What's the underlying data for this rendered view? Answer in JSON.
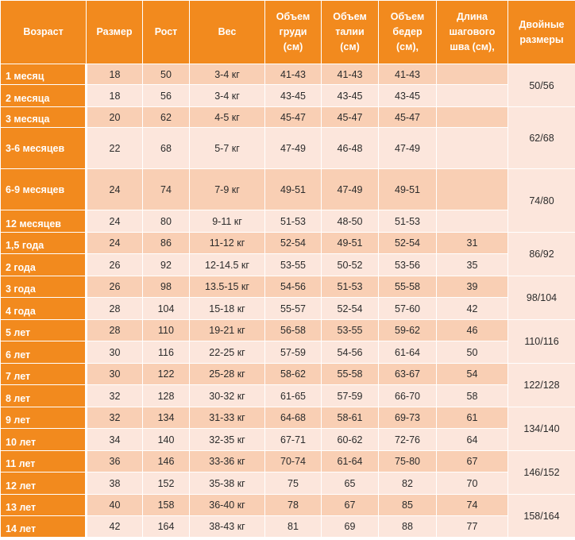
{
  "table": {
    "headers": [
      [
        "Возраст"
      ],
      [
        "Размер"
      ],
      [
        "Рост"
      ],
      [
        "Вес"
      ],
      [
        "Объем",
        "груди",
        "(см)"
      ],
      [
        "Объем",
        "талии",
        "(см)"
      ],
      [
        "Объем",
        "бедер",
        "(см),"
      ],
      [
        "Длина",
        "шагового",
        "шва (см),"
      ],
      [
        "Двойные",
        "размеры"
      ]
    ],
    "rows": [
      {
        "age": "1 месяц",
        "size": "18",
        "height": "50",
        "weight": "3-4 кг",
        "chest": "41-43",
        "waist": "41-43",
        "hips": "41-43",
        "inseam": ""
      },
      {
        "age": "2 месяца",
        "size": "18",
        "height": "56",
        "weight": "3-4 кг",
        "chest": "43-45",
        "waist": "43-45",
        "hips": "43-45",
        "inseam": ""
      },
      {
        "age": "3 месяца",
        "size": "20",
        "height": "62",
        "weight": "4-5 кг",
        "chest": "45-47",
        "waist": "45-47",
        "hips": "45-47",
        "inseam": ""
      },
      {
        "age": "3-6 месяцев",
        "size": "22",
        "height": "68",
        "weight": "5-7 кг",
        "chest": "47-49",
        "waist": "46-48",
        "hips": "47-49",
        "inseam": ""
      },
      {
        "age": "6-9 месяцев",
        "size": "24",
        "height": "74",
        "weight": "7-9 кг",
        "chest": "49-51",
        "waist": "47-49",
        "hips": "49-51",
        "inseam": ""
      },
      {
        "age": "12 месяцев",
        "size": "24",
        "height": "80",
        "weight": "9-11 кг",
        "chest": "51-53",
        "waist": "48-50",
        "hips": "51-53",
        "inseam": ""
      },
      {
        "age": "1,5 года",
        "size": "24",
        "height": "86",
        "weight": "11-12 кг",
        "chest": "52-54",
        "waist": "49-51",
        "hips": "52-54",
        "inseam": "31"
      },
      {
        "age": "2 года",
        "size": "26",
        "height": "92",
        "weight": "12-14.5 кг",
        "chest": "53-55",
        "waist": "50-52",
        "hips": "53-56",
        "inseam": "35"
      },
      {
        "age": "3 года",
        "size": "26",
        "height": "98",
        "weight": "13.5-15 кг",
        "chest": "54-56",
        "waist": "51-53",
        "hips": "55-58",
        "inseam": "39"
      },
      {
        "age": "4 года",
        "size": "28",
        "height": "104",
        "weight": "15-18 кг",
        "chest": "55-57",
        "waist": "52-54",
        "hips": "57-60",
        "inseam": "42"
      },
      {
        "age": "5 лет",
        "size": "28",
        "height": "110",
        "weight": "19-21 кг",
        "chest": "56-58",
        "waist": "53-55",
        "hips": "59-62",
        "inseam": "46"
      },
      {
        "age": "6 лет",
        "size": "30",
        "height": "116",
        "weight": "22-25 кг",
        "chest": "57-59",
        "waist": "54-56",
        "hips": "61-64",
        "inseam": "50"
      },
      {
        "age": "7 лет",
        "size": "30",
        "height": "122",
        "weight": "25-28 кг",
        "chest": "58-62",
        "waist": "55-58",
        "hips": "63-67",
        "inseam": "54"
      },
      {
        "age": "8 лет",
        "size": "32",
        "height": "128",
        "weight": "30-32 кг",
        "chest": "61-65",
        "waist": "57-59",
        "hips": "66-70",
        "inseam": "58"
      },
      {
        "age": "9 лет",
        "size": "32",
        "height": "134",
        "weight": "31-33 кг",
        "chest": "64-68",
        "waist": "58-61",
        "hips": "69-73",
        "inseam": "61"
      },
      {
        "age": "10 лет",
        "size": "34",
        "height": "140",
        "weight": "32-35 кг",
        "chest": "67-71",
        "waist": "60-62",
        "hips": "72-76",
        "inseam": "64"
      },
      {
        "age": "11 лет",
        "size": "36",
        "height": "146",
        "weight": "33-36 кг",
        "chest": "70-74",
        "waist": "61-64",
        "hips": "75-80",
        "inseam": "67"
      },
      {
        "age": "12 лет",
        "size": "38",
        "height": "152",
        "weight": "35-38 кг",
        "chest": "75",
        "waist": "65",
        "hips": "82",
        "inseam": "70"
      },
      {
        "age": "13 лет",
        "size": "40",
        "height": "158",
        "weight": "36-40 кг",
        "chest": "78",
        "waist": "67",
        "hips": "85",
        "inseam": "74"
      },
      {
        "age": "14 лет",
        "size": "42",
        "height": "164",
        "weight": "38-43 кг",
        "chest": "81",
        "waist": "69",
        "hips": "88",
        "inseam": "77"
      }
    ],
    "double_sizes": [
      "50/56",
      "62/68",
      "74/80",
      "86/92",
      "98/104",
      "110/116",
      "122/128",
      "134/140",
      "146/152",
      "158/164"
    ]
  }
}
